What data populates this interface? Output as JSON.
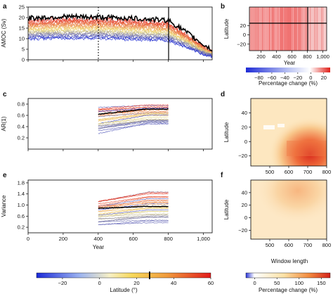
{
  "panel_letters": [
    "a",
    "b",
    "c",
    "d",
    "e",
    "f"
  ],
  "colors": {
    "cool": "#1f2bd6",
    "mid": "#f2e27a",
    "warm": "#e2231a",
    "highlight": "#000000",
    "heat_low": "#fff2cc",
    "heat_high": "#d4241c"
  },
  "colorbars": {
    "latitude": {
      "ticks": [
        "−20",
        "0",
        "20",
        "40",
        "60"
      ],
      "label": "Latitude (°)",
      "range": [
        -34,
        60
      ],
      "marker": 27
    },
    "percentage_b": {
      "ticks": [
        "−80",
        "−60",
        "−40",
        "−20",
        "0",
        "20"
      ],
      "label": "Percentage change (%)",
      "range": [
        -100,
        30
      ]
    },
    "percentage_df": {
      "ticks": [
        "0",
        "50",
        "100",
        "150"
      ],
      "label": "Percentage change (%)",
      "range": [
        -20,
        170
      ]
    }
  },
  "chart_data": [
    {
      "panel": "a",
      "type": "line",
      "xlabel": "",
      "ylabel": "AMOC (Sv)",
      "xlim": [
        0,
        1050
      ],
      "ylim": [
        0,
        25
      ],
      "yticks": [
        "0",
        "5",
        "10",
        "15",
        "20",
        "25"
      ],
      "xticks": [],
      "dotted_line_x": 400,
      "solid_line_x": 800,
      "series": [
        {
          "values": [
            [
              0,
              18.5
            ],
            [
              200,
              19.2
            ],
            [
              400,
              19.0
            ],
            [
              600,
              18.4
            ],
            [
              800,
              17.5
            ],
            [
              900,
              12.0
            ],
            [
              1000,
              6.0
            ],
            [
              1050,
              3.5
            ]
          ]
        },
        {
          "values": [
            [
              0,
              13.0
            ],
            [
              400,
              13.2
            ],
            [
              800,
              12.0
            ],
            [
              900,
              8.0
            ],
            [
              1000,
              3.5
            ],
            [
              1050,
              2.0
            ]
          ]
        },
        {
          "values": [
            [
              0,
              10.0
            ],
            [
              400,
              10.2
            ],
            [
              800,
              9.0
            ],
            [
              900,
              6.0
            ],
            [
              1000,
              2.5
            ],
            [
              1050,
              1.5
            ]
          ]
        }
      ]
    },
    {
      "panel": "b",
      "type": "heatmap",
      "xlabel": "Year",
      "ylabel": "Latitude",
      "xticks": [
        "200",
        "400",
        "600",
        "800",
        "1,000"
      ],
      "yticks": [
        "20",
        "0",
        "−20"
      ],
      "xlim": [
        50,
        1050
      ],
      "ylim": [
        -34,
        60
      ],
      "hline_y": 20,
      "vline_x": 800
    },
    {
      "panel": "c",
      "type": "line",
      "xlabel": "",
      "ylabel": "AR(1)",
      "xlim": [
        0,
        1050
      ],
      "ylim": [
        0,
        0.9
      ],
      "yticks": [
        "0.2",
        "0.4",
        "0.6",
        "0.8"
      ],
      "xticks": [],
      "series": [
        {
          "values": [
            [
              400,
              0.73
            ],
            [
              800,
              0.78
            ]
          ]
        },
        {
          "values": [
            [
              400,
              0.62
            ],
            [
              800,
              0.71
            ]
          ]
        },
        {
          "values": [
            [
              400,
              0.42
            ],
            [
              800,
              0.55
            ]
          ]
        },
        {
          "values": [
            [
              400,
              0.3
            ],
            [
              800,
              0.45
            ]
          ]
        }
      ]
    },
    {
      "panel": "d",
      "type": "heatmap",
      "xlabel": "",
      "ylabel": "Latitude",
      "xticks": [
        "500",
        "600",
        "700",
        "800"
      ],
      "yticks": [
        "40",
        "20",
        "0",
        "−20"
      ],
      "xlim": [
        400,
        800
      ],
      "ylim": [
        -34,
        60
      ]
    },
    {
      "panel": "e",
      "type": "line",
      "xlabel": "Year",
      "ylabel": "Variance",
      "xlim": [
        0,
        1050
      ],
      "ylim": [
        0,
        1.9
      ],
      "yticks": [
        "0.2",
        "0.6",
        "1.0",
        "1.4",
        "1.8"
      ],
      "xticks": [
        "0",
        "200",
        "400",
        "600",
        "800",
        "1,000"
      ],
      "series": [
        {
          "values": [
            [
              400,
              1.15
            ],
            [
              800,
              1.45
            ]
          ]
        },
        {
          "values": [
            [
              400,
              0.88
            ],
            [
              800,
              0.95
            ]
          ]
        },
        {
          "values": [
            [
              400,
              0.55
            ],
            [
              800,
              0.65
            ]
          ]
        },
        {
          "values": [
            [
              400,
              0.3
            ],
            [
              800,
              0.4
            ]
          ]
        }
      ]
    },
    {
      "panel": "f",
      "type": "heatmap",
      "xlabel": "Window length",
      "ylabel": "Latitude",
      "xticks": [
        "500",
        "600",
        "700",
        "800"
      ],
      "yticks": [
        "40",
        "20",
        "0",
        "−20"
      ],
      "xlim": [
        400,
        800
      ],
      "ylim": [
        -34,
        60
      ]
    }
  ]
}
